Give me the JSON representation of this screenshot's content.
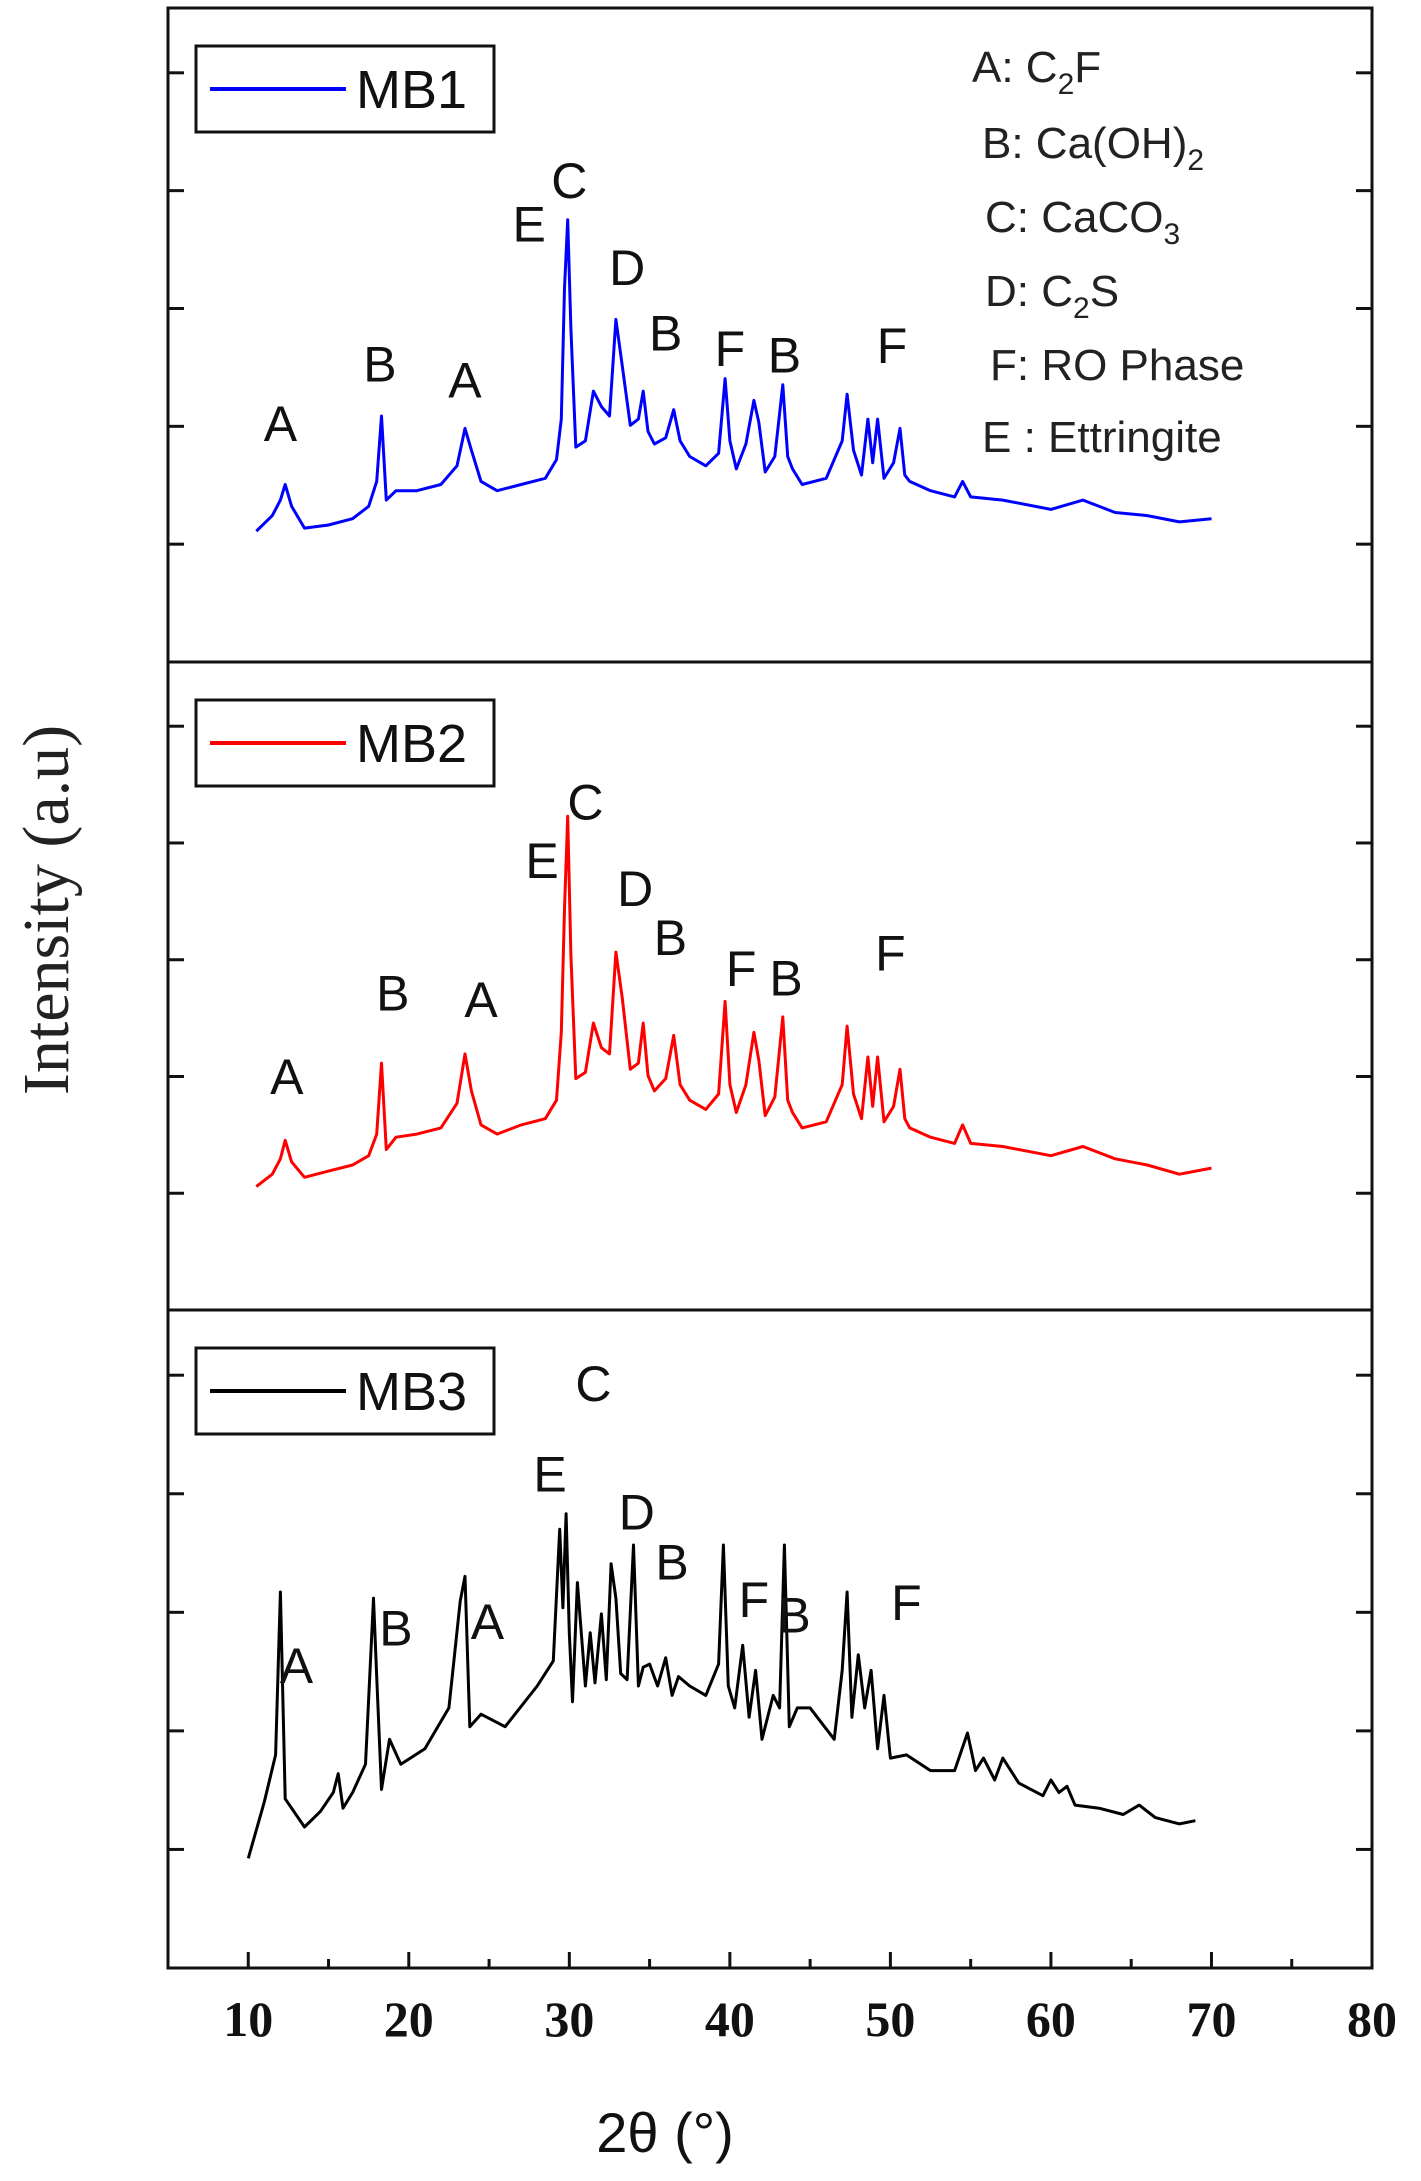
{
  "chart_data": {
    "type": "line",
    "title": "",
    "xlabel": "2θ (°)",
    "ylabel": "Intensity (a.u)",
    "xlim": [
      5,
      80
    ],
    "xticks": [
      10,
      20,
      30,
      40,
      50,
      60,
      70,
      80
    ],
    "legend_position": "top-left",
    "phase_key": [
      {
        "code": "A",
        "main": "C",
        "sub": "2",
        "rest": "F",
        "label": "A: C2F"
      },
      {
        "code": "B",
        "main": "Ca(OH)",
        "sub": "2",
        "rest": "",
        "label": "B: Ca(OH)2"
      },
      {
        "code": "C",
        "main": "CaCO",
        "sub": "3",
        "rest": "",
        "label": "C: CaCO3"
      },
      {
        "code": "D",
        "main": "C",
        "sub": "2",
        "rest": "S",
        "label": "D: C2S"
      },
      {
        "code": "F",
        "main": "RO Phase",
        "sub": "",
        "rest": "",
        "label": "F: RO Phase"
      },
      {
        "code": "E",
        "main": "Ettringite",
        "sub": "",
        "rest": "",
        "label": "E : Ettringite"
      }
    ],
    "series": [
      {
        "name": "MB1",
        "color": "#0000ff",
        "x": [
          10.5,
          11.5,
          12.0,
          12.3,
          12.7,
          13.5,
          15,
          16.5,
          17.5,
          18.0,
          18.3,
          18.6,
          19.2,
          20.5,
          22.0,
          23.0,
          23.5,
          23.9,
          24.5,
          25.5,
          27.0,
          28.5,
          29.2,
          29.5,
          29.7,
          29.9,
          30.1,
          30.4,
          31.0,
          31.5,
          32.0,
          32.5,
          32.9,
          33.3,
          33.8,
          34.3,
          34.6,
          34.9,
          35.3,
          36.0,
          36.5,
          36.9,
          37.5,
          38.5,
          39.3,
          39.7,
          40.0,
          40.4,
          41.0,
          41.5,
          41.8,
          42.2,
          42.8,
          43.3,
          43.6,
          43.9,
          44.5,
          46.0,
          47.0,
          47.3,
          47.7,
          48.2,
          48.6,
          48.9,
          49.2,
          49.6,
          50.2,
          50.6,
          50.9,
          51.2,
          52.5,
          54.0,
          54.5,
          55.0,
          57.0,
          60.0,
          62.0,
          64.0,
          66.0,
          68.0,
          70.0
        ],
        "y": [
          0.07,
          0.12,
          0.17,
          0.22,
          0.15,
          0.08,
          0.09,
          0.11,
          0.15,
          0.23,
          0.44,
          0.17,
          0.2,
          0.2,
          0.22,
          0.28,
          0.4,
          0.33,
          0.23,
          0.2,
          0.22,
          0.24,
          0.3,
          0.43,
          0.85,
          1.07,
          0.72,
          0.34,
          0.36,
          0.52,
          0.47,
          0.44,
          0.75,
          0.6,
          0.41,
          0.43,
          0.52,
          0.39,
          0.35,
          0.37,
          0.46,
          0.36,
          0.31,
          0.28,
          0.32,
          0.56,
          0.36,
          0.27,
          0.35,
          0.49,
          0.42,
          0.26,
          0.31,
          0.54,
          0.31,
          0.27,
          0.22,
          0.24,
          0.36,
          0.51,
          0.33,
          0.25,
          0.43,
          0.29,
          0.43,
          0.24,
          0.29,
          0.4,
          0.25,
          0.23,
          0.2,
          0.18,
          0.23,
          0.18,
          0.17,
          0.14,
          0.17,
          0.13,
          0.12,
          0.1,
          0.11
        ]
      },
      {
        "name": "MB2",
        "color": "#ff0000",
        "x": [
          10.5,
          11.5,
          12.0,
          12.3,
          12.7,
          13.5,
          15,
          16.5,
          17.5,
          18.0,
          18.3,
          18.6,
          19.2,
          20.5,
          22.0,
          23.0,
          23.5,
          23.9,
          24.5,
          25.5,
          27.0,
          28.5,
          29.2,
          29.5,
          29.7,
          29.9,
          30.1,
          30.4,
          31.0,
          31.5,
          32.0,
          32.5,
          32.9,
          33.3,
          33.8,
          34.3,
          34.6,
          34.9,
          35.3,
          36.0,
          36.5,
          36.9,
          37.5,
          38.5,
          39.3,
          39.7,
          40.0,
          40.4,
          41.0,
          41.5,
          41.8,
          42.2,
          42.8,
          43.3,
          43.6,
          43.9,
          44.5,
          46.0,
          47.0,
          47.3,
          47.7,
          48.2,
          48.6,
          48.9,
          49.2,
          49.6,
          50.2,
          50.6,
          50.9,
          51.2,
          52.5,
          54.0,
          54.5,
          55.0,
          57.0,
          60.0,
          62.0,
          64.0,
          66.0,
          68.0,
          70.0
        ],
        "y": [
          0.05,
          0.09,
          0.14,
          0.2,
          0.13,
          0.08,
          0.1,
          0.12,
          0.15,
          0.22,
          0.45,
          0.17,
          0.21,
          0.22,
          0.24,
          0.32,
          0.48,
          0.36,
          0.25,
          0.22,
          0.25,
          0.27,
          0.33,
          0.55,
          0.95,
          1.25,
          0.8,
          0.4,
          0.42,
          0.58,
          0.5,
          0.48,
          0.81,
          0.66,
          0.43,
          0.45,
          0.58,
          0.41,
          0.36,
          0.4,
          0.54,
          0.38,
          0.33,
          0.3,
          0.35,
          0.65,
          0.38,
          0.29,
          0.38,
          0.55,
          0.46,
          0.28,
          0.34,
          0.6,
          0.33,
          0.29,
          0.24,
          0.26,
          0.38,
          0.57,
          0.35,
          0.27,
          0.47,
          0.31,
          0.47,
          0.26,
          0.31,
          0.43,
          0.27,
          0.24,
          0.21,
          0.19,
          0.25,
          0.19,
          0.18,
          0.15,
          0.18,
          0.14,
          0.12,
          0.09,
          0.11
        ]
      },
      {
        "name": "MB3",
        "color": "#000000",
        "x": [
          10.0,
          11.0,
          11.7,
          12.0,
          12.3,
          13.5,
          14.5,
          15.3,
          15.6,
          15.9,
          16.5,
          17.3,
          17.8,
          18.0,
          18.3,
          18.8,
          19.5,
          21.0,
          22.5,
          23.2,
          23.5,
          23.8,
          24.5,
          26.0,
          28.0,
          29.0,
          29.4,
          29.6,
          29.8,
          30.0,
          30.2,
          30.5,
          31.0,
          31.3,
          31.6,
          32.0,
          32.3,
          32.6,
          32.9,
          33.2,
          33.6,
          34.0,
          34.3,
          34.6,
          35.0,
          35.5,
          36.0,
          36.4,
          36.8,
          37.5,
          38.5,
          39.3,
          39.6,
          39.9,
          40.3,
          40.8,
          41.2,
          41.6,
          42.0,
          42.7,
          43.1,
          43.4,
          43.7,
          44.2,
          45.0,
          46.5,
          47.0,
          47.3,
          47.6,
          48.0,
          48.4,
          48.8,
          49.2,
          49.6,
          50.0,
          51.0,
          52.5,
          54.0,
          54.8,
          55.3,
          55.8,
          56.5,
          57.0,
          58.0,
          59.5,
          60.0,
          60.5,
          61.0,
          61.5,
          63.0,
          64.5,
          65.5,
          66.5,
          68.0,
          69.0
        ],
        "y": [
          0.0,
          0.18,
          0.33,
          0.85,
          0.19,
          0.1,
          0.15,
          0.21,
          0.27,
          0.16,
          0.21,
          0.3,
          0.83,
          0.58,
          0.22,
          0.38,
          0.3,
          0.35,
          0.48,
          0.82,
          0.9,
          0.42,
          0.46,
          0.42,
          0.55,
          0.63,
          1.05,
          0.8,
          1.1,
          0.72,
          0.5,
          0.88,
          0.55,
          0.72,
          0.56,
          0.78,
          0.57,
          0.94,
          0.83,
          0.59,
          0.57,
          1.0,
          0.55,
          0.61,
          0.62,
          0.55,
          0.64,
          0.52,
          0.58,
          0.55,
          0.52,
          0.62,
          1.0,
          0.55,
          0.48,
          0.68,
          0.45,
          0.6,
          0.38,
          0.52,
          0.48,
          1.0,
          0.42,
          0.48,
          0.48,
          0.38,
          0.6,
          0.85,
          0.45,
          0.65,
          0.48,
          0.6,
          0.35,
          0.52,
          0.32,
          0.33,
          0.28,
          0.28,
          0.4,
          0.28,
          0.32,
          0.25,
          0.32,
          0.24,
          0.2,
          0.25,
          0.21,
          0.23,
          0.17,
          0.16,
          0.14,
          0.17,
          0.13,
          0.11,
          0.12
        ]
      }
    ],
    "peak_labels": [
      {
        "series": "MB1",
        "marks": [
          {
            "t": "A",
            "x": 12.0,
            "y": 0.36
          },
          {
            "t": "B",
            "x": 18.2,
            "y": 0.55
          },
          {
            "t": "A",
            "x": 23.5,
            "y": 0.5
          },
          {
            "t": "E",
            "x": 27.5,
            "y": 1.0
          },
          {
            "t": "C",
            "x": 30.0,
            "y": 1.14
          },
          {
            "t": "D",
            "x": 33.6,
            "y": 0.86
          },
          {
            "t": "B",
            "x": 36.0,
            "y": 0.65
          },
          {
            "t": "F",
            "x": 40.0,
            "y": 0.6
          },
          {
            "t": "B",
            "x": 43.4,
            "y": 0.58
          },
          {
            "t": "F",
            "x": 50.1,
            "y": 0.61
          }
        ]
      },
      {
        "series": "MB2",
        "marks": [
          {
            "t": "A",
            "x": 12.4,
            "y": 0.35
          },
          {
            "t": "B",
            "x": 19.0,
            "y": 0.62
          },
          {
            "t": "A",
            "x": 24.5,
            "y": 0.6
          },
          {
            "t": "E",
            "x": 28.3,
            "y": 1.05
          },
          {
            "t": "C",
            "x": 31.0,
            "y": 1.24
          },
          {
            "t": "D",
            "x": 34.1,
            "y": 0.96
          },
          {
            "t": "B",
            "x": 36.3,
            "y": 0.8
          },
          {
            "t": "F",
            "x": 40.7,
            "y": 0.7
          },
          {
            "t": "B",
            "x": 43.5,
            "y": 0.67
          },
          {
            "t": "F",
            "x": 50.0,
            "y": 0.75
          }
        ]
      },
      {
        "series": "MB3",
        "marks": [
          {
            "t": "A",
            "x": 13.0,
            "y": 0.56
          },
          {
            "t": "B",
            "x": 19.2,
            "y": 0.68
          },
          {
            "t": "A",
            "x": 24.9,
            "y": 0.7
          },
          {
            "t": "E",
            "x": 28.8,
            "y": 1.17
          },
          {
            "t": "C",
            "x": 31.5,
            "y": 1.46
          },
          {
            "t": "D",
            "x": 34.2,
            "y": 1.05
          },
          {
            "t": "B",
            "x": 36.4,
            "y": 0.89
          },
          {
            "t": "F",
            "x": 41.5,
            "y": 0.77
          },
          {
            "t": "B",
            "x": 44.0,
            "y": 0.72
          },
          {
            "t": "F",
            "x": 51.0,
            "y": 0.76
          }
        ]
      }
    ]
  }
}
